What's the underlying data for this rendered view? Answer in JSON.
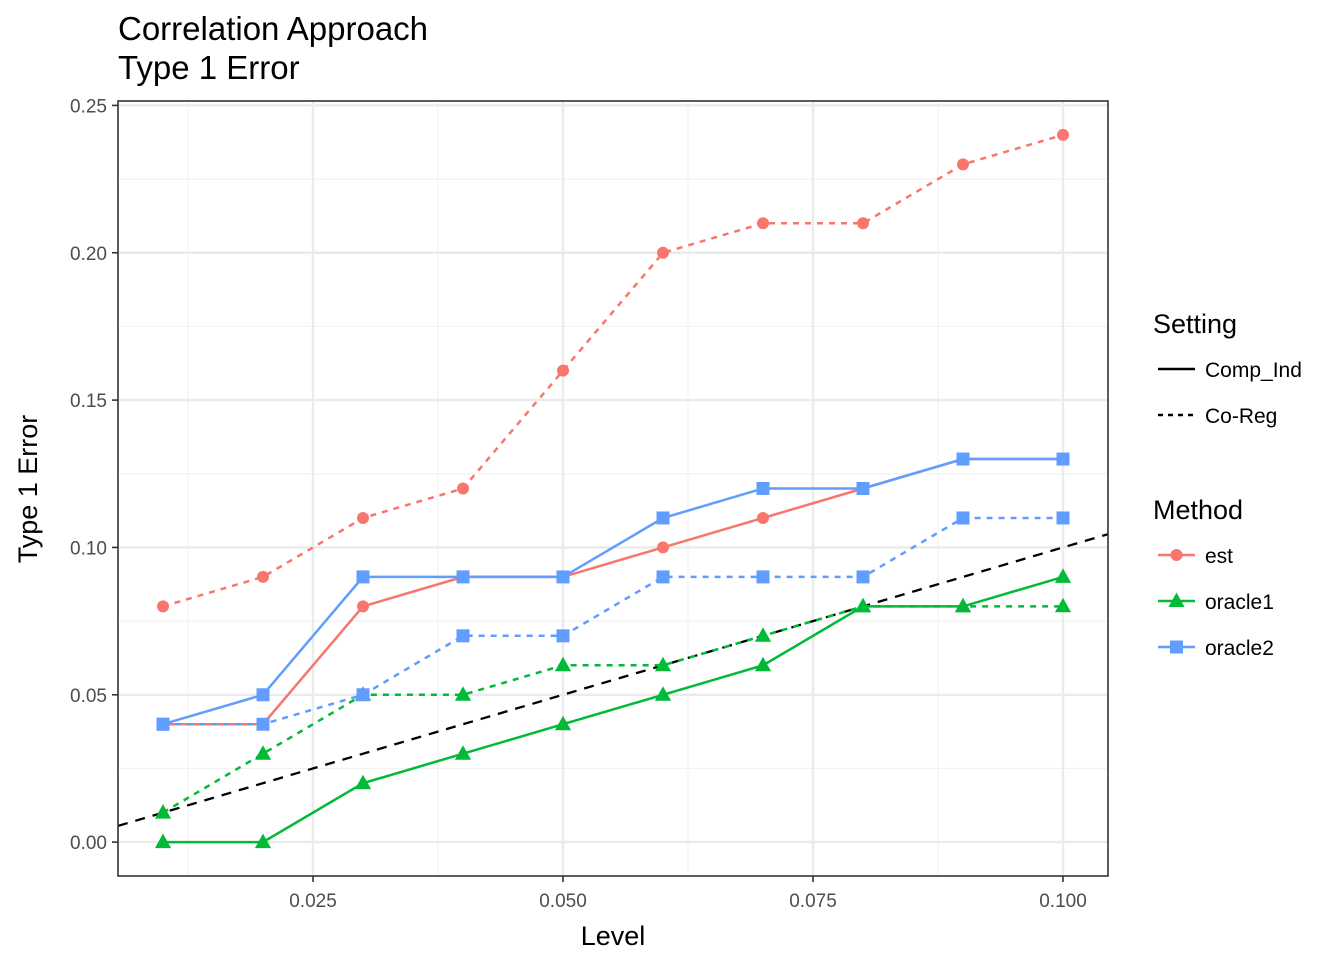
{
  "chart_data": {
    "type": "line",
    "title": "Correlation Approach",
    "subtitle": "Type 1 Error",
    "xlabel": "Level",
    "ylabel": "Type 1 Error",
    "xlim": [
      0.0055,
      0.1045
    ],
    "ylim": [
      -0.0115,
      0.2515
    ],
    "x_ticks": [
      0.025,
      0.05,
      0.075,
      0.1
    ],
    "x_tick_labels": [
      "0.025",
      "0.050",
      "0.075",
      "0.100"
    ],
    "y_ticks": [
      0.0,
      0.05,
      0.1,
      0.15,
      0.2,
      0.25
    ],
    "y_tick_labels": [
      "0.00",
      "0.05",
      "0.10",
      "0.15",
      "0.20",
      "0.25"
    ],
    "grid": true,
    "legend_position": "right",
    "x": [
      0.01,
      0.02,
      0.03,
      0.04,
      0.05,
      0.06,
      0.07,
      0.08,
      0.09,
      0.1
    ],
    "reference_line": {
      "intercept": 0,
      "slope": 1,
      "color": "#000000",
      "dash": "dashed"
    },
    "legend_setting": {
      "title": "Setting",
      "items": [
        {
          "label": "Comp_Ind",
          "dash": "solid"
        },
        {
          "label": "Co-Reg",
          "dash": "dotted"
        }
      ]
    },
    "legend_method": {
      "title": "Method",
      "items": [
        {
          "label": "est",
          "color": "#F8766D",
          "shape": "circle"
        },
        {
          "label": "oracle1",
          "color": "#00BA38",
          "shape": "triangle"
        },
        {
          "label": "oracle2",
          "color": "#619CFF",
          "shape": "square"
        }
      ]
    },
    "series": [
      {
        "method": "est",
        "setting": "Comp_Ind",
        "color": "#F8766D",
        "shape": "circle",
        "dash": "solid",
        "values": [
          0.04,
          0.04,
          0.08,
          0.09,
          0.09,
          0.1,
          0.11,
          0.12,
          0.13,
          0.13
        ]
      },
      {
        "method": "est",
        "setting": "Co-Reg",
        "color": "#F8766D",
        "shape": "circle",
        "dash": "dotted",
        "values": [
          0.08,
          0.09,
          0.11,
          0.12,
          0.16,
          0.2,
          0.21,
          0.21,
          0.23,
          0.24
        ]
      },
      {
        "method": "oracle1",
        "setting": "Comp_Ind",
        "color": "#00BA38",
        "shape": "triangle",
        "dash": "solid",
        "values": [
          0.0,
          0.0,
          0.02,
          0.03,
          0.04,
          0.05,
          0.06,
          0.08,
          0.08,
          0.09
        ]
      },
      {
        "method": "oracle1",
        "setting": "Co-Reg",
        "color": "#00BA38",
        "shape": "triangle",
        "dash": "dotted",
        "values": [
          0.01,
          0.03,
          0.05,
          0.05,
          0.06,
          0.06,
          0.07,
          0.08,
          0.08,
          0.08
        ]
      },
      {
        "method": "oracle2",
        "setting": "Comp_Ind",
        "color": "#619CFF",
        "shape": "square",
        "dash": "solid",
        "values": [
          0.04,
          0.05,
          0.09,
          0.09,
          0.09,
          0.11,
          0.12,
          0.12,
          0.13,
          0.13
        ]
      },
      {
        "method": "oracle2",
        "setting": "Co-Reg",
        "color": "#619CFF",
        "shape": "square",
        "dash": "dotted",
        "values": [
          0.04,
          0.04,
          0.05,
          0.07,
          0.07,
          0.09,
          0.09,
          0.09,
          0.11,
          0.11
        ]
      }
    ]
  }
}
